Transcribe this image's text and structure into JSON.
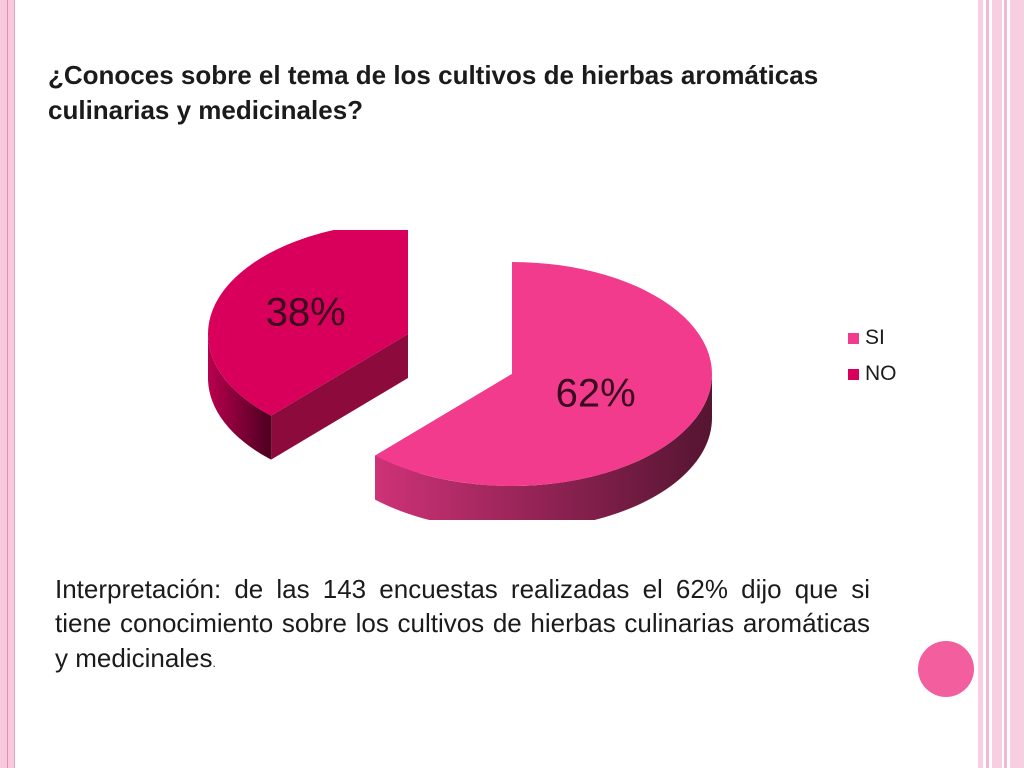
{
  "slide": {
    "title": "¿Conoces sobre el tema de los cultivos de hierbas aromáticas culinarias y medicinales?",
    "interpretation": "Interpretación: de las 143 encuestas realizadas el 62% dijo que si tiene conocimiento sobre los cultivos de hierbas culinarias aromáticas y medicinales",
    "interpretation_end": "."
  },
  "colors": {
    "si": "#f23b8c",
    "no": "#d9005b",
    "accent_circle": "#f35f9e",
    "border_pink": "#f6c9dc"
  },
  "chart_data": {
    "type": "pie",
    "style": "3d-exploded",
    "title": "",
    "categories": [
      "SI",
      "NO"
    ],
    "values": [
      62,
      38
    ],
    "data_labels": [
      "62%",
      "38%"
    ],
    "legend": {
      "position": "right",
      "entries": [
        "SI",
        "NO"
      ]
    }
  }
}
